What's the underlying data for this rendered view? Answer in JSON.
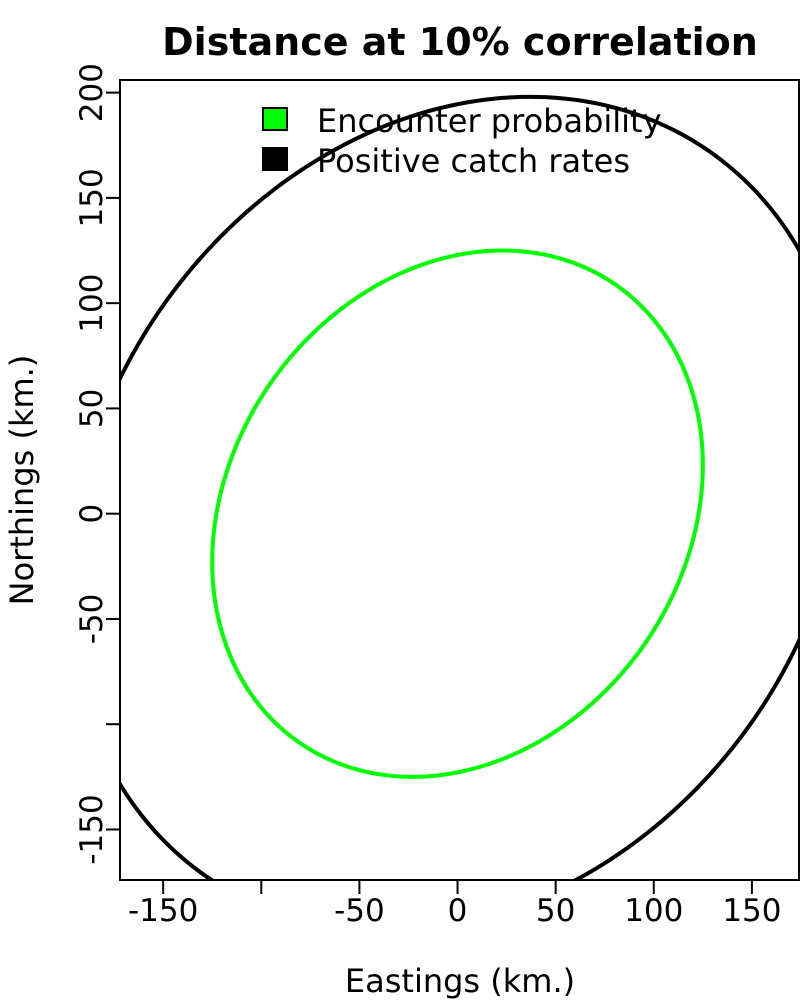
{
  "chart_data": {
    "type": "line",
    "title": "Distance at 10% correlation",
    "xlabel": "Eastings (km.)",
    "ylabel": "Northings (km.)",
    "xlim": [
      -172,
      174
    ],
    "ylim": [
      -174,
      206
    ],
    "x_ticks": [
      {
        "value": -150,
        "label": "-150"
      },
      {
        "value": -100,
        "label": ""
      },
      {
        "value": -50,
        "label": "-50"
      },
      {
        "value": 0,
        "label": "0"
      },
      {
        "value": 50,
        "label": "50"
      },
      {
        "value": 100,
        "label": "100"
      },
      {
        "value": 150,
        "label": "150"
      }
    ],
    "y_ticks": [
      {
        "value": -150,
        "label": "-150"
      },
      {
        "value": -100,
        "label": ""
      },
      {
        "value": -50,
        "label": "-50"
      },
      {
        "value": 0,
        "label": "0"
      },
      {
        "value": 50,
        "label": "50"
      },
      {
        "value": 100,
        "label": "100"
      },
      {
        "value": 150,
        "label": "150"
      },
      {
        "value": 200,
        "label": "200"
      }
    ],
    "grid": false,
    "legend": {
      "position": "top",
      "entries": [
        {
          "label": "Encounter probability",
          "color": "#00ff00"
        },
        {
          "label": "Positive catch rates",
          "color": "#000000"
        }
      ]
    },
    "series": [
      {
        "name": "Encounter probability",
        "color": "#00ff00",
        "shape": "ellipse",
        "center": [
          0,
          0
        ],
        "extent_x": [
          -125,
          125
        ],
        "extent_y": [
          -125,
          125
        ],
        "top_point": [
          24,
          125
        ],
        "right_point": [
          125,
          23
        ]
      },
      {
        "name": "Positive catch rates",
        "color": "#000000",
        "shape": "ellipse",
        "center": [
          0,
          0
        ],
        "extent_x": [
          -198,
          198
        ],
        "extent_y": [
          -198,
          198
        ],
        "top_point": [
          38,
          198
        ],
        "right_point": [
          198,
          37
        ]
      }
    ]
  }
}
